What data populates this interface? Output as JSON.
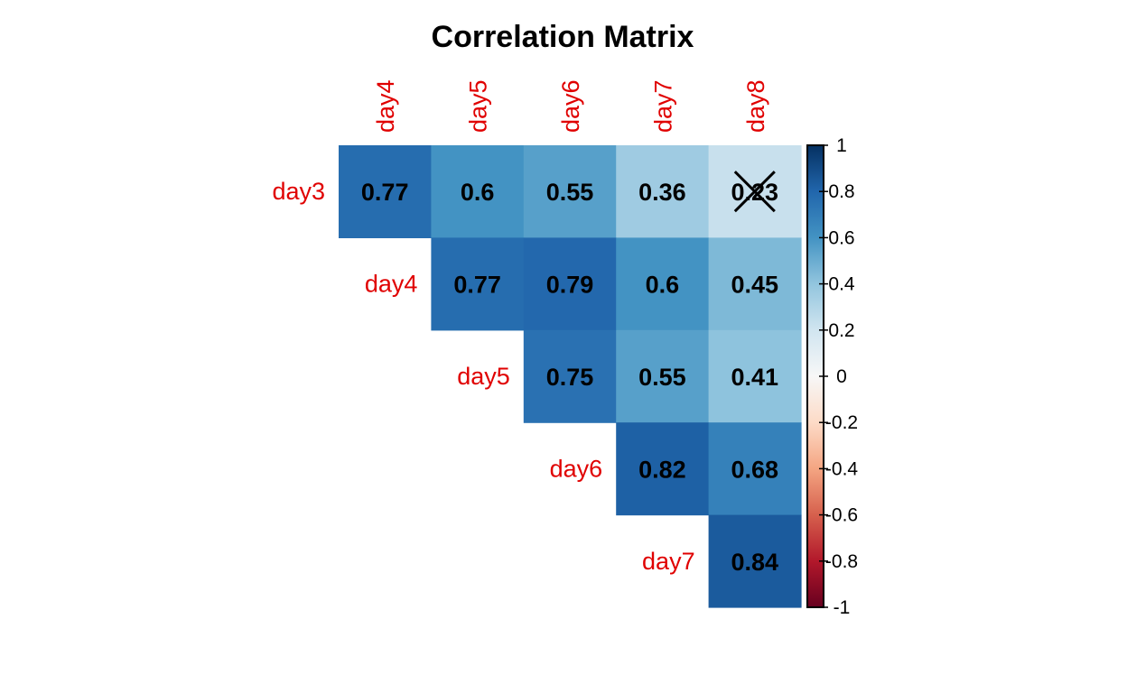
{
  "chart_data": {
    "type": "heatmap",
    "title": "Correlation Matrix",
    "rows": [
      "day3",
      "day4",
      "day5",
      "day6",
      "day7"
    ],
    "columns": [
      "day4",
      "day5",
      "day6",
      "day7",
      "day8"
    ],
    "cells": [
      {
        "row": "day3",
        "col": "day4",
        "value": 0.77,
        "label": "0.77"
      },
      {
        "row": "day3",
        "col": "day5",
        "value": 0.6,
        "label": "0.6"
      },
      {
        "row": "day3",
        "col": "day6",
        "value": 0.55,
        "label": "0.55"
      },
      {
        "row": "day3",
        "col": "day7",
        "value": 0.36,
        "label": "0.36"
      },
      {
        "row": "day3",
        "col": "day8",
        "value": 0.23,
        "label": "0.23",
        "crossed": true
      },
      {
        "row": "day4",
        "col": "day5",
        "value": 0.77,
        "label": "0.77"
      },
      {
        "row": "day4",
        "col": "day6",
        "value": 0.79,
        "label": "0.79"
      },
      {
        "row": "day4",
        "col": "day7",
        "value": 0.6,
        "label": "0.6"
      },
      {
        "row": "day4",
        "col": "day8",
        "value": 0.45,
        "label": "0.45"
      },
      {
        "row": "day5",
        "col": "day6",
        "value": 0.75,
        "label": "0.75"
      },
      {
        "row": "day5",
        "col": "day7",
        "value": 0.55,
        "label": "0.55"
      },
      {
        "row": "day5",
        "col": "day8",
        "value": 0.41,
        "label": "0.41"
      },
      {
        "row": "day6",
        "col": "day7",
        "value": 0.82,
        "label": "0.82"
      },
      {
        "row": "day6",
        "col": "day8",
        "value": 0.68,
        "label": "0.68"
      },
      {
        "row": "day7",
        "col": "day8",
        "value": 0.84,
        "label": "0.84"
      }
    ],
    "colorbar": {
      "range": [
        -1,
        1
      ],
      "ticks": [
        1,
        0.8,
        0.6,
        0.4,
        0.2,
        0,
        -0.2,
        -0.4,
        -0.6,
        -0.8,
        -1
      ],
      "tick_labels": [
        "1",
        "0.8",
        "0.6",
        "0.4",
        "0.2",
        "0",
        "-0.2",
        "-0.4",
        "-0.6",
        "-0.8",
        "-1"
      ]
    },
    "colors": {
      "label": "#e00000",
      "scale": [
        "#67001f",
        "#b2182b",
        "#d6604d",
        "#f4a582",
        "#fddbc7",
        "#f7f7f7",
        "#d1e5f0",
        "#92c5de",
        "#4393c3",
        "#2166ac",
        "#053061"
      ]
    }
  }
}
